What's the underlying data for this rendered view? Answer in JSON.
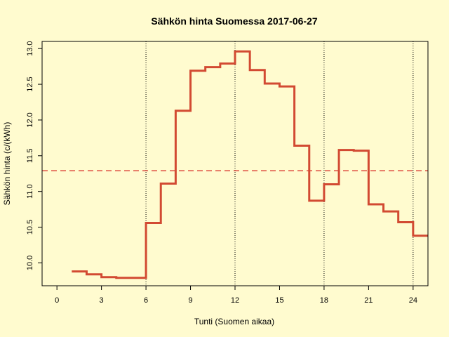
{
  "chart_data": {
    "type": "line",
    "step": true,
    "title": "Sähkön hinta Suomessa 2017-06-27",
    "xlabel": "Tunti (Suomen aikaa)",
    "ylabel": "Sähkön hinta (c/(kWh)",
    "xlim": [
      -1,
      25
    ],
    "ylim": [
      9.68,
      13.1
    ],
    "x_ticks": [
      0,
      3,
      6,
      9,
      12,
      15,
      18,
      21,
      24
    ],
    "y_ticks": [
      "10.0",
      "10.5",
      "11.0",
      "11.5",
      "12.0",
      "12.5",
      "13.0"
    ],
    "vertical_gridlines": [
      6,
      12,
      18,
      24
    ],
    "average": 11.29,
    "series": [
      {
        "color": "#D24A32",
        "x": [
          1,
          2,
          3,
          4,
          5,
          6,
          7,
          8,
          9,
          10,
          11,
          12,
          13,
          14,
          15,
          16,
          17,
          18,
          19,
          20,
          21,
          22,
          23,
          24
        ],
        "values": [
          9.88,
          9.84,
          9.8,
          9.79,
          9.79,
          10.56,
          11.11,
          12.13,
          12.69,
          12.74,
          12.79,
          12.96,
          12.7,
          12.51,
          12.47,
          11.64,
          10.87,
          11.1,
          11.58,
          11.57,
          10.82,
          10.72,
          10.57,
          10.38
        ]
      }
    ],
    "colors": {
      "series": "#D24A32",
      "average_line": "#E05A4A",
      "background": "#FFFBCF"
    }
  }
}
